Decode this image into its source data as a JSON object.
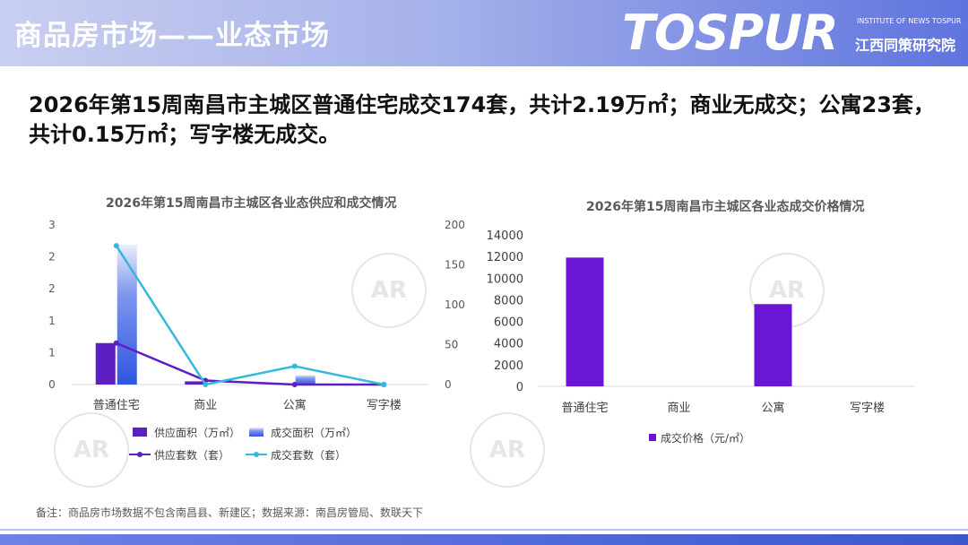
{
  "page_title": "商品房市场——业态市场",
  "logo": {
    "wordmark": "TOSPUR",
    "en": "INSTITUTE OF NEWS TOSPUR",
    "cn": "江西同策研究院",
    "watermark_stamp": "AR"
  },
  "headline": "2026年第15周南昌市主城区普通住宅成交174套，共计2.19万㎡；商业无成交；公寓23套，共计0.15万㎡；写字楼无成交。",
  "footnote": "备注：商品房市场数据不包含南昌县、新建区；数据来源：南昌房管局、数联天下",
  "colors": {
    "purple": "#5b1fc4",
    "blue": "#3c63e4",
    "cyan": "#36b8dc",
    "violet": "#6a16d4"
  },
  "chart_data": [
    {
      "type": "bar",
      "title": "2026年第15周南昌市主城区各业态供应和成交情况",
      "categories": [
        "普通住宅",
        "商业",
        "公寓",
        "写字楼"
      ],
      "left_axis": {
        "ticks": [
          "0",
          "1",
          "1",
          "2",
          "2",
          "3"
        ],
        "ylim": [
          0,
          2.5
        ]
      },
      "right_axis": {
        "ticks": [
          "0",
          "50",
          "100",
          "150",
          "200"
        ],
        "ylim": [
          0,
          200
        ]
      },
      "series": [
        {
          "name": "供应面积（万㎡）",
          "type": "bar",
          "axis": "left",
          "values": [
            0.65,
            0.05,
            0,
            0
          ]
        },
        {
          "name": "成交面积（万㎡）",
          "type": "bar",
          "axis": "left",
          "values": [
            2.19,
            0,
            0.15,
            0
          ]
        },
        {
          "name": "供应套数（套）",
          "type": "line",
          "axis": "right",
          "values": [
            52,
            5,
            0,
            0
          ]
        },
        {
          "name": "成交套数（套）",
          "type": "line",
          "axis": "right",
          "values": [
            174,
            0,
            23,
            0
          ]
        }
      ],
      "legend": "bottom"
    },
    {
      "type": "bar",
      "title": "2026年第15周南昌市主城区各业态成交价格情况",
      "categories": [
        "普通住宅",
        "商业",
        "公寓",
        "写字楼"
      ],
      "y_axis": {
        "ticks": [
          "0",
          "2000",
          "4000",
          "6000",
          "8000",
          "10000",
          "12000",
          "14000"
        ],
        "ylim": [
          0,
          14000
        ]
      },
      "series": [
        {
          "name": "成交价格（元/㎡）",
          "values": [
            11900,
            0,
            7600,
            0
          ]
        }
      ],
      "legend": "bottom"
    }
  ]
}
